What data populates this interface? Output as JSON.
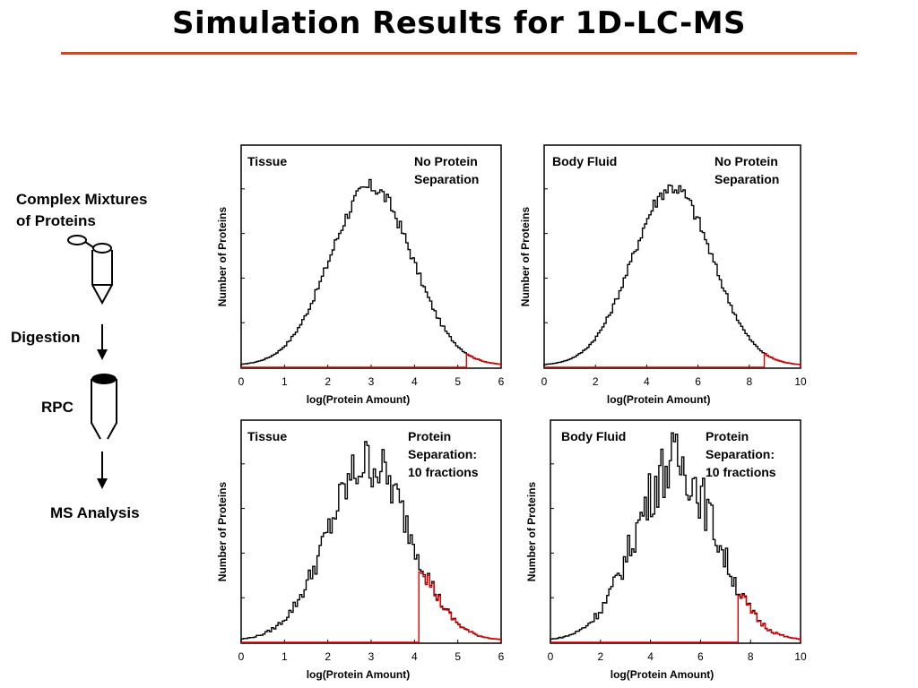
{
  "slide": {
    "title": "Simulation Results for 1D-LC-MS"
  },
  "workflow": {
    "step1": "Complex Mixtures",
    "step1b": "of Proteins",
    "digestion": "Digestion",
    "rpc": "RPC",
    "ms": "MS Analysis"
  },
  "colors": {
    "accent_rule": "#d04a1c",
    "identified": "#e00000",
    "all": "#000000"
  },
  "chart_data": [
    {
      "type": "line",
      "panel_label": "Tissue",
      "note_line1": "No Protein",
      "note_line2": "Separation",
      "note_line3": "",
      "xlabel": "log(Protein Amount)",
      "ylabel": "Number of Proteins",
      "xlim": [
        0,
        6
      ],
      "xticks": [
        "0",
        "1",
        "2",
        "3",
        "4",
        "5",
        "6"
      ],
      "series": [
        {
          "color": "#000000",
          "center": 3.0,
          "sigma": 0.95,
          "start": 0.0,
          "end": 6.0,
          "noise": 0.015
        },
        {
          "color": "#e00000",
          "threshold": 5.2
        }
      ]
    },
    {
      "type": "line",
      "panel_label": "Body Fluid",
      "note_line1": "No Protein",
      "note_line2": "Separation",
      "note_line3": "",
      "xlabel": "log(Protein Amount)",
      "ylabel": "Number of Proteins",
      "xlim": [
        0,
        10
      ],
      "xticks": [
        "0",
        "2",
        "4",
        "6",
        "8",
        "10"
      ],
      "series": [
        {
          "color": "#000000",
          "center": 5.0,
          "sigma": 1.55,
          "start": 0.0,
          "end": 10.0,
          "noise": 0.015
        },
        {
          "color": "#e00000",
          "threshold": 8.6
        }
      ]
    },
    {
      "type": "line",
      "panel_label": "Tissue",
      "note_line1": "Protein",
      "note_line2": "Separation:",
      "note_line3": "10 fractions",
      "xlabel": "log(Protein Amount)",
      "ylabel": "Number of Proteins",
      "xlim": [
        0,
        6
      ],
      "xticks": [
        "0",
        "1",
        "2",
        "3",
        "4",
        "5",
        "6"
      ],
      "series": [
        {
          "color": "#000000",
          "center": 2.95,
          "sigma": 0.95,
          "start": 0.0,
          "end": 6.0,
          "noise": 0.05
        },
        {
          "color": "#e00000",
          "threshold": 4.1
        }
      ]
    },
    {
      "type": "line",
      "panel_label": "Body Fluid",
      "note_line1": "Protein",
      "note_line2": "Separation:",
      "note_line3": "10 fractions",
      "xlabel": "log(Protein Amount)",
      "ylabel": "Number of Proteins",
      "xlim": [
        0,
        10
      ],
      "xticks": [
        "0",
        "2",
        "4",
        "6",
        "8",
        "10"
      ],
      "series": [
        {
          "color": "#000000",
          "center": 5.0,
          "sigma": 1.6,
          "start": 0.0,
          "end": 10.0,
          "noise": 0.06
        },
        {
          "color": "#e00000",
          "threshold": 7.5
        }
      ]
    }
  ]
}
